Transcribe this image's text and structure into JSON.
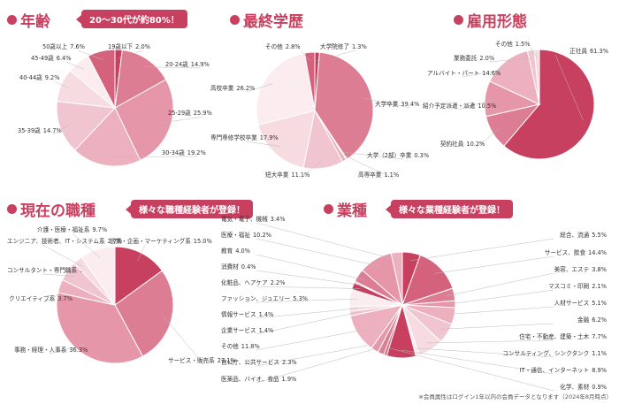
{
  "headers": {
    "age": "年齢",
    "education": "最終学歴",
    "employment": "雇用形態",
    "job": "現在の職種",
    "industry": "業種"
  },
  "badges": {
    "age": "20〜30代が約80%！",
    "job": "様々な職種経験者が登録！",
    "industry": "様々な業種経験者が登録！"
  },
  "note": "※会員属性はログイン1年以内の会員データとなります（2024年8月時点）",
  "colors": {
    "accent": "#c8405f",
    "text": "#333333"
  },
  "chart_data": [
    {
      "type": "pie",
      "id": "age",
      "labels": [
        "19歳以下",
        "20-24歳",
        "25-29歳",
        "30-34歳",
        "35-39歳",
        "40-44歳",
        "45-49歳",
        "50歳以上"
      ],
      "values": [
        2.0,
        14.9,
        25.9,
        19.2,
        14.7,
        9.2,
        6.4,
        7.6
      ],
      "value_texts": [
        "2.0%",
        "14.9%",
        "25.9%",
        "19.2%",
        "14.7%",
        "9.2%",
        "6.4%",
        "7.6%"
      ]
    },
    {
      "type": "pie",
      "id": "education",
      "labels": [
        "大学院修了",
        "大学卒業",
        "大学（2部）卒業",
        "高専卒業",
        "短大卒業",
        "専門専修学校卒業",
        "高校卒業",
        "その他"
      ],
      "values": [
        1.3,
        39.4,
        0.3,
        1.1,
        11.1,
        17.9,
        26.2,
        2.8
      ],
      "value_texts": [
        "1.3%",
        "39.4%",
        "0.3%",
        "1.1%",
        "11.1%",
        "17.9%",
        "26.2%",
        "2.8%"
      ]
    },
    {
      "type": "pie",
      "id": "employment",
      "labels": [
        "正社員",
        "契約社員",
        "紹介予定派遣・派遣",
        "アルバイト・パート",
        "業務委託",
        "その他"
      ],
      "values": [
        61.3,
        10.2,
        10.5,
        14.6,
        2.0,
        1.5
      ],
      "value_texts": [
        "61.3%",
        "10.2%",
        "10.5%",
        "14.6%",
        "2.0%",
        "1.5%"
      ]
    },
    {
      "type": "pie",
      "id": "job",
      "labels": [
        "営業・企画・マーケティング系",
        "サービス・販売系",
        "事務・経理・人事系",
        "クリエイティブ系",
        "コンサルタント・専門職系",
        "エンジニア、技術者、IT・システム系",
        "介護・医療・福祉系"
      ],
      "values": [
        15.0,
        27.1,
        36.3,
        3.7,
        5.5,
        2.7,
        9.7
      ],
      "value_texts": [
        "15.0%",
        "27.1%",
        "36.3%",
        "3.7%",
        "5.5%",
        "2.7%",
        "9.7%"
      ]
    },
    {
      "type": "pie",
      "id": "industry",
      "labels": [
        "総合、流通",
        "サービス、飲食",
        "美容、エステ",
        "マスコミ・印刷",
        "人材サービス",
        "金融",
        "住宅・不動産、建築・土木",
        "コンサルティング、シンクタンク",
        "IT・通信、インターネット",
        "化学、素材",
        "医薬品、バイオ、食品",
        "官公庁、公共サービス",
        "その他",
        "企業サービス",
        "情報サービス",
        "ファッション、ジュエリー",
        "化粧品、ヘアケア",
        "消費材",
        "教育",
        "医療・福祉",
        "電気・電子、機械"
      ],
      "values": [
        5.5,
        14.4,
        3.8,
        2.1,
        5.1,
        6.2,
        7.7,
        1.1,
        8.9,
        0.9,
        1.9,
        2.3,
        11.8,
        1.4,
        1.4,
        5.3,
        2.2,
        0.4,
        4.0,
        10.2,
        3.4
      ],
      "value_texts": [
        "5.5%",
        "14.4%",
        "3.8%",
        "2.1%",
        "5.1%",
        "6.2%",
        "7.7%",
        "1.1%",
        "8.9%",
        "0.9%",
        "1.9%",
        "2.3%",
        "11.8%",
        "1.4%",
        "1.4%",
        "5.3%",
        "2.2%",
        "0.4%",
        "4.0%",
        "10.2%",
        "3.4%"
      ]
    }
  ]
}
